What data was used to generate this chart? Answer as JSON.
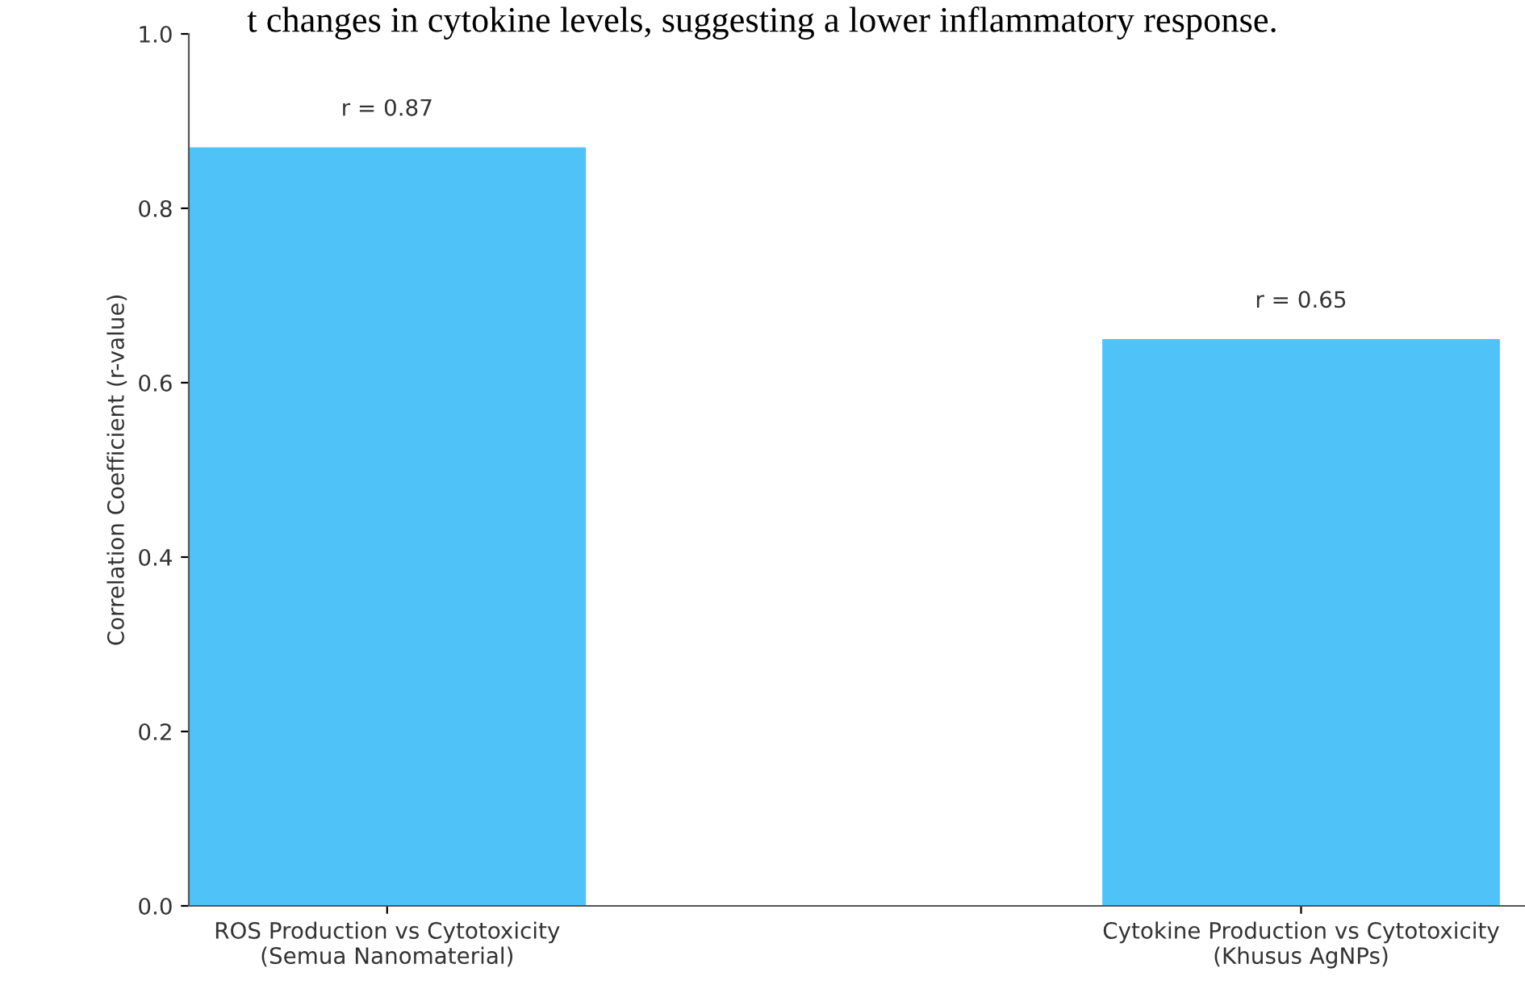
{
  "chart_data": {
    "type": "bar",
    "ylabel": "Correlation Coefficient (r-value)",
    "categories": [
      "ROS Production vs Cytotoxicity\n(Semua Nanomaterial)",
      "Cytokine Production vs Cytotoxicity\n(Khusus AgNPs)"
    ],
    "values": [
      0.87,
      0.65
    ],
    "color": "#4fc3f7",
    "value_labels": [
      "r = 0.87",
      "r = 0.65"
    ],
    "ylim": [
      0,
      1.0
    ],
    "yticks": [
      {
        "value": 0,
        "label": "0.0"
      },
      0.2,
      0.4,
      0.6,
      0.8,
      {
        "value": 1.0,
        "label": "1.0"
      }
    ],
    "grid": false,
    "legend": false,
    "annotations": [
      "t changes in cytokine levels, suggesting a lower inflammatory response."
    ]
  }
}
